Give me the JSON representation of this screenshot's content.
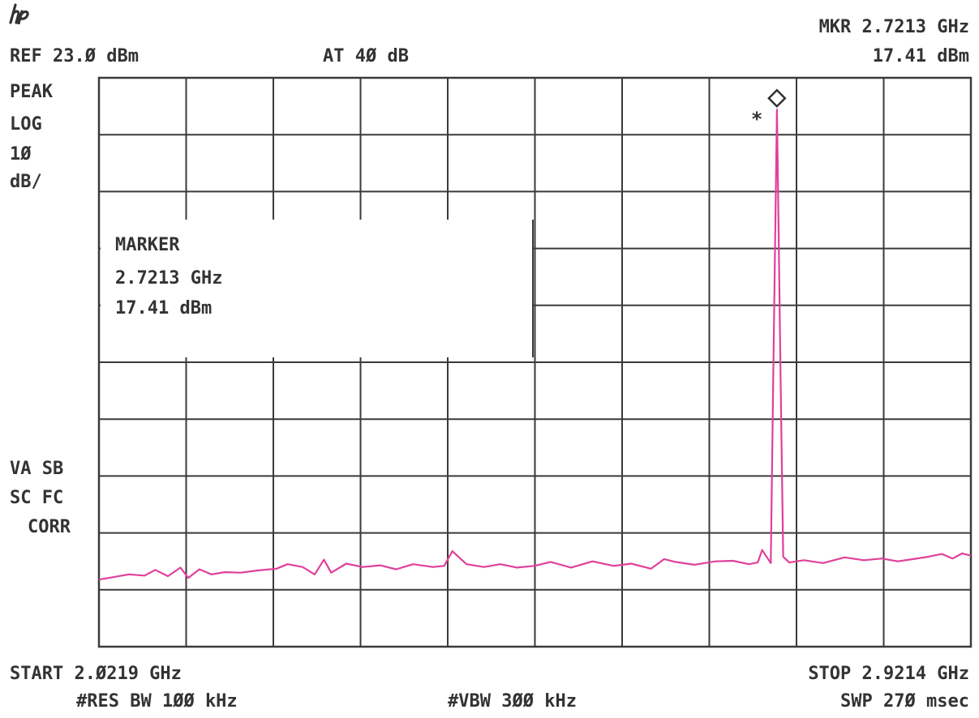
{
  "header": {
    "mkr_freq": "MKR 2.7213 GHz",
    "ref_level": "REF 23.Ø dBm",
    "attenuation": "AT 4Ø dB",
    "mkr_amp": "17.41 dBm"
  },
  "side": {
    "detector": "PEAK",
    "scale": "LOG",
    "scale_value": "1Ø",
    "scale_unit": "dB/",
    "flags_1": "VA SB",
    "flags_2": "SC FC",
    "flags_3": "CORR"
  },
  "marker_box": {
    "title": "MARKER",
    "freq": "2.7213 GHz",
    "amp": "17.41 dBm"
  },
  "footer": {
    "start": "START 2.Ø219 GHz",
    "stop": "STOP 2.9214 GHz",
    "rbw": "#RES BW 1ØØ kHz",
    "vbw": "#VBW 3ØØ kHz",
    "sweep": "SWP 27Ø msec"
  },
  "colors": {
    "trace": "#e0409a",
    "graticule": "#3a3a3a",
    "ink": "#333333"
  },
  "chart_data": {
    "type": "line",
    "x_unit": "GHz",
    "y_unit": "dBm",
    "xlim": [
      2.0219,
      2.9214
    ],
    "ylim": [
      -77,
      23
    ],
    "y_divisions": 10,
    "x_divisions": 10,
    "grid": true,
    "marker": {
      "x": 2.7213,
      "y": 17.41
    },
    "series": [
      {
        "x": [
          2.0219,
          2.039,
          2.0525,
          2.069,
          2.08,
          2.093,
          2.106,
          2.114,
          2.1255,
          2.138,
          2.1515,
          2.168,
          2.186,
          2.205,
          2.2165,
          2.232,
          2.2445,
          2.254,
          2.2615,
          2.277,
          2.294,
          2.312,
          2.3285,
          2.346,
          2.3665,
          2.378,
          2.3865,
          2.401,
          2.419,
          2.436,
          2.453,
          2.471,
          2.488,
          2.509,
          2.531,
          2.553,
          2.571,
          2.5915,
          2.605,
          2.6165,
          2.636,
          2.658,
          2.676,
          2.6925,
          2.7015,
          2.706,
          2.715,
          2.7175,
          2.7203,
          2.7213,
          2.7223,
          2.7251,
          2.7278,
          2.734,
          2.749,
          2.769,
          2.791,
          2.811,
          2.8295,
          2.846,
          2.862,
          2.877,
          2.8915,
          2.9025,
          2.9125,
          2.9214
        ],
        "y": [
          -65.2,
          -64.7,
          -64.3,
          -64.5,
          -63.5,
          -64.6,
          -63.1,
          -64.9,
          -63.4,
          -64.3,
          -63.9,
          -64.0,
          -63.6,
          -63.3,
          -62.5,
          -63.0,
          -64.3,
          -61.7,
          -64.0,
          -62.4,
          -63.0,
          -62.7,
          -63.4,
          -62.5,
          -63.0,
          -62.8,
          -60.2,
          -62.5,
          -63.0,
          -62.5,
          -63.1,
          -62.8,
          -62.1,
          -63.1,
          -62.0,
          -62.8,
          -62.4,
          -63.3,
          -61.6,
          -62.1,
          -62.6,
          -62.0,
          -61.9,
          -62.5,
          -62.2,
          -60.0,
          -62.3,
          -30.0,
          5.0,
          17.41,
          5.0,
          -30.0,
          -61.2,
          -62.2,
          -61.8,
          -62.3,
          -61.3,
          -61.8,
          -61.5,
          -62.0,
          -61.6,
          -61.2,
          -60.7,
          -61.5,
          -60.6,
          -61.0
        ]
      }
    ]
  }
}
